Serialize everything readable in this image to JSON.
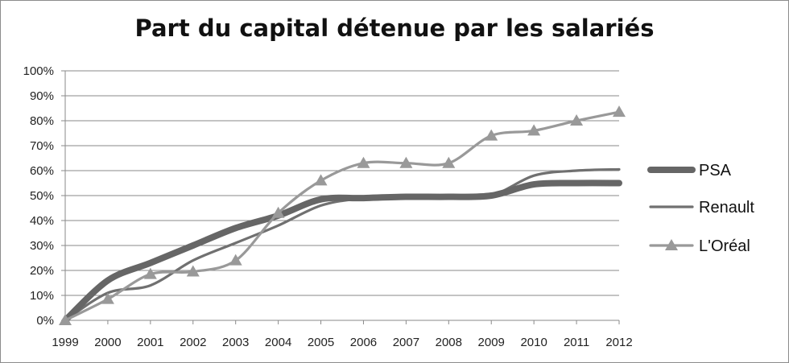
{
  "chart_data": {
    "type": "line",
    "title": "Part du capital détenue par les salariés",
    "xlabel": "",
    "ylabel": "",
    "x": [
      "1999",
      "2000",
      "2001",
      "2002",
      "2003",
      "2004",
      "2005",
      "2006",
      "2007",
      "2008",
      "2009",
      "2010",
      "2011",
      "2012"
    ],
    "y_ticks": [
      "0%",
      "10%",
      "20%",
      "30%",
      "40%",
      "50%",
      "60%",
      "70%",
      "80%",
      "90%",
      "100%"
    ],
    "ylim": [
      0,
      100
    ],
    "grid": true,
    "legend_position": "right",
    "series": [
      {
        "name": "PSA",
        "color": "#666666",
        "marker": "none",
        "style": "thick",
        "values": [
          0,
          16,
          23,
          30,
          37,
          42,
          48.5,
          49,
          49.5,
          49.5,
          50,
          54.5,
          55,
          55
        ]
      },
      {
        "name": "Renault",
        "color": "#707070",
        "marker": "none",
        "style": "thin",
        "values": [
          0,
          11,
          14,
          24,
          31,
          38,
          46,
          49,
          50,
          50,
          50,
          58,
          60,
          60.5
        ]
      },
      {
        "name": "L'Oréal",
        "color": "#999999",
        "marker": "triangle",
        "style": "thin",
        "values": [
          0,
          8.5,
          18.5,
          19.5,
          24,
          43,
          56,
          63,
          63,
          63,
          74,
          76,
          80,
          83.5
        ]
      }
    ]
  }
}
